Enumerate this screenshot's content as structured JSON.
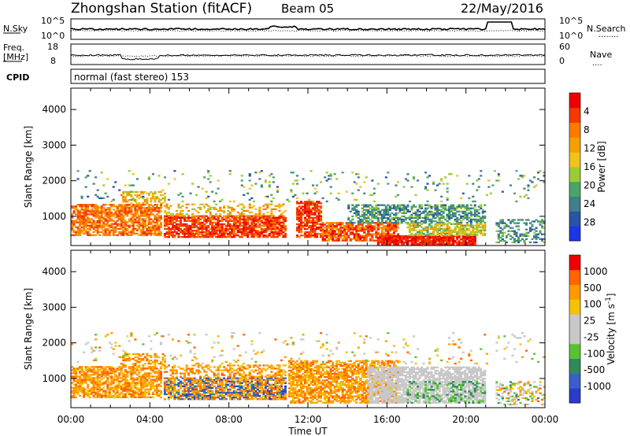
{
  "header": {
    "station": "Zhongshan Station (fitACF)",
    "beam": "Beam 05",
    "date": "22/May/2016"
  },
  "noise_panel": {
    "left_label": "N.Sky",
    "right_label": "N.Search",
    "right_label_line": "........",
    "tick_top": "10^5",
    "tick_bottom": "10^0"
  },
  "freq_panel": {
    "left_label_1": "Freq.",
    "left_label_2": "[MHz]",
    "tick_top": "18",
    "tick_bottom": "8",
    "right_label": "Nave",
    "right_label_line": "....",
    "right_tick_top": "60",
    "right_tick_bottom": "0"
  },
  "cpid_panel": {
    "label": "CPID",
    "text": "normal (fast stereo) 153"
  },
  "chart_data": [
    {
      "type": "heatmap",
      "name": "power",
      "ylabel": "Slant Range [km]",
      "ylim": [
        180,
        4600
      ],
      "yticks": [
        1000,
        2000,
        3000,
        4000
      ],
      "x_range_hours": [
        0,
        24
      ],
      "colorbar_label": "Power [dB]",
      "colorbar_ticks": [
        "4",
        "8",
        "12",
        "16",
        "20",
        "24",
        "28"
      ],
      "colorbar_colors": [
        "#1c36e6",
        "#2854a8",
        "#3f7f8a",
        "#4aa36a",
        "#9ccc34",
        "#f0c21a",
        "#f4a000",
        "#ff7a00",
        "#f23a00",
        "#ee0000"
      ],
      "scatter_regions": [
        {
          "t0": 0.0,
          "t1": 4.6,
          "r0": 450,
          "r1": 1350,
          "color_index": [
            6,
            8
          ],
          "density": 0.7
        },
        {
          "t0": 2.5,
          "t1": 4.7,
          "r0": 1350,
          "r1": 1700,
          "color_index": [
            4,
            7
          ],
          "density": 0.45
        },
        {
          "t0": 4.7,
          "t1": 10.8,
          "r0": 400,
          "r1": 1000,
          "color_index": [
            7,
            9
          ],
          "density": 0.8
        },
        {
          "t0": 4.7,
          "t1": 10.8,
          "r0": 1000,
          "r1": 1350,
          "color_index": [
            4,
            7
          ],
          "density": 0.35
        },
        {
          "t0": 11.4,
          "t1": 12.6,
          "r0": 400,
          "r1": 1400,
          "color_index": [
            7,
            9
          ],
          "density": 0.75
        },
        {
          "t0": 12.7,
          "t1": 16.5,
          "r0": 300,
          "r1": 800,
          "color_index": [
            6,
            9
          ],
          "density": 0.8
        },
        {
          "t0": 14.0,
          "t1": 21.0,
          "r0": 800,
          "r1": 1300,
          "color_index": [
            1,
            4
          ],
          "density": 0.6
        },
        {
          "t0": 15.5,
          "t1": 20.5,
          "r0": 200,
          "r1": 450,
          "color_index": [
            8,
            9
          ],
          "density": 0.9
        },
        {
          "t0": 17.0,
          "t1": 21.0,
          "r0": 450,
          "r1": 800,
          "color_index": [
            3,
            6
          ],
          "density": 0.7
        },
        {
          "t0": 0.0,
          "t1": 24.0,
          "r0": 1400,
          "r1": 2300,
          "color_index": [
            1,
            5
          ],
          "density": 0.05
        },
        {
          "t0": 21.5,
          "t1": 24.0,
          "r0": 250,
          "r1": 900,
          "color_index": [
            1,
            4
          ],
          "density": 0.4
        }
      ]
    },
    {
      "type": "heatmap",
      "name": "velocity",
      "ylabel": "Slant Range [km]",
      "ylim": [
        180,
        4600
      ],
      "yticks": [
        1000,
        2000,
        3000,
        4000
      ],
      "x_range_hours": [
        0,
        24
      ],
      "xticks": [
        "00:00",
        "04:00",
        "08:00",
        "12:00",
        "16:00",
        "20:00",
        "00:00"
      ],
      "xlabel": "Time UT",
      "colorbar_label": "Velocity [m s^-1]",
      "colorbar_ticks": [
        "1000",
        "500",
        "100",
        "25",
        "-25",
        "-100",
        "-500",
        "-1000"
      ],
      "colorbar_colors": [
        "#2a3cc8",
        "#3a5fcd",
        "#2f8a5a",
        "#59c234",
        "#c8c8c8",
        "#c8c8c8",
        "#f2c300",
        "#ff9a00",
        "#ff6400",
        "#ee0000"
      ],
      "scatter_regions": [
        {
          "t0": 0.0,
          "t1": 4.6,
          "r0": 450,
          "r1": 1350,
          "color_index": [
            6,
            8
          ],
          "density": 0.7
        },
        {
          "t0": 2.5,
          "t1": 4.7,
          "r0": 1350,
          "r1": 1700,
          "color_index": [
            6,
            8
          ],
          "density": 0.4
        },
        {
          "t0": 4.7,
          "t1": 10.8,
          "r0": 400,
          "r1": 1000,
          "color_index": [
            0,
            2
          ],
          "density": 0.6
        },
        {
          "t0": 4.7,
          "t1": 10.8,
          "r0": 400,
          "r1": 1350,
          "color_index": [
            6,
            8
          ],
          "density": 0.4
        },
        {
          "t0": 11.0,
          "t1": 16.5,
          "r0": 300,
          "r1": 1500,
          "color_index": [
            6,
            8
          ],
          "density": 0.7
        },
        {
          "t0": 15.0,
          "t1": 21.0,
          "r0": 300,
          "r1": 1300,
          "color_index": [
            4,
            5
          ],
          "density": 0.75
        },
        {
          "t0": 17.0,
          "t1": 21.0,
          "r0": 300,
          "r1": 900,
          "color_index": [
            2,
            3
          ],
          "density": 0.25
        },
        {
          "t0": 0.0,
          "t1": 24.0,
          "r0": 1400,
          "r1": 2300,
          "color_index": [
            3,
            8
          ],
          "density": 0.05
        },
        {
          "t0": 21.5,
          "t1": 24.0,
          "r0": 250,
          "r1": 900,
          "color_index": [
            2,
            8
          ],
          "density": 0.4
        }
      ]
    }
  ]
}
